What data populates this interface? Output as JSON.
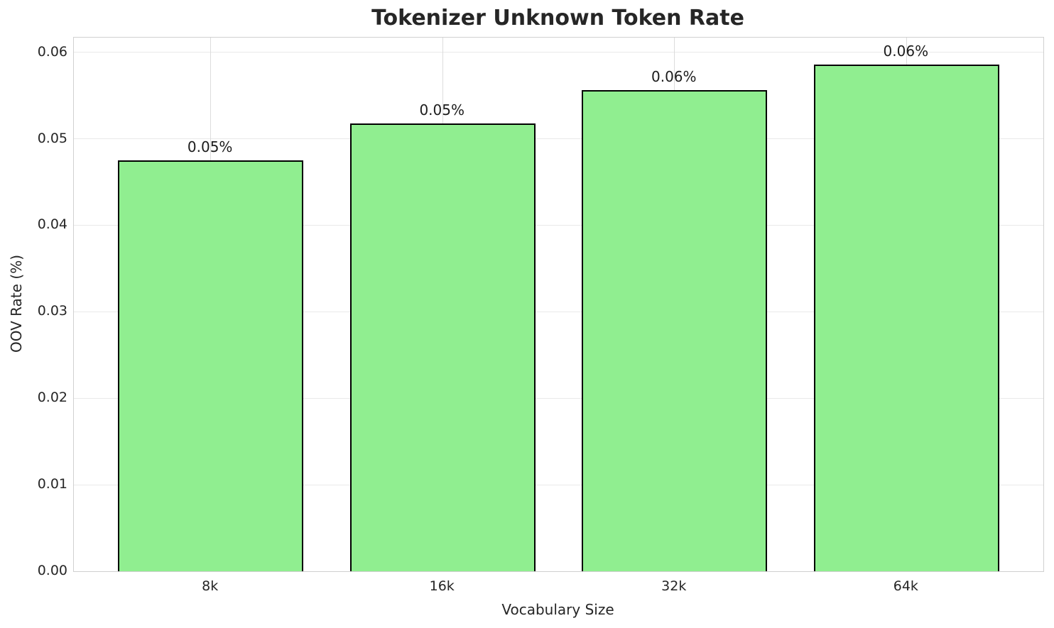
{
  "chart_data": {
    "type": "bar",
    "title": "Tokenizer Unknown Token Rate",
    "xlabel": "Vocabulary Size",
    "ylabel": "OOV Rate (%)",
    "categories": [
      "8k",
      "16k",
      "32k",
      "64k"
    ],
    "values": [
      0.0475,
      0.0518,
      0.0556,
      0.0586
    ],
    "bar_labels": [
      "0.05%",
      "0.05%",
      "0.06%",
      "0.06%"
    ],
    "yticks": [
      {
        "value": 0.0,
        "label": "0.00"
      },
      {
        "value": 0.01,
        "label": "0.01"
      },
      {
        "value": 0.02,
        "label": "0.02"
      },
      {
        "value": 0.03,
        "label": "0.03"
      },
      {
        "value": 0.04,
        "label": "0.04"
      },
      {
        "value": 0.05,
        "label": "0.05"
      },
      {
        "value": 0.06,
        "label": "0.06"
      }
    ],
    "ylim": [
      0,
      0.0617
    ],
    "grid": true,
    "legend_position": "none",
    "colors": {
      "bar_fill": "#90EE90",
      "bar_edge": "#000000",
      "grid_h": "#E9E9E9",
      "grid_v": "#DCDCDC",
      "spine": "#D0D0D0",
      "text": "#262626",
      "background": "#FFFFFF"
    }
  }
}
